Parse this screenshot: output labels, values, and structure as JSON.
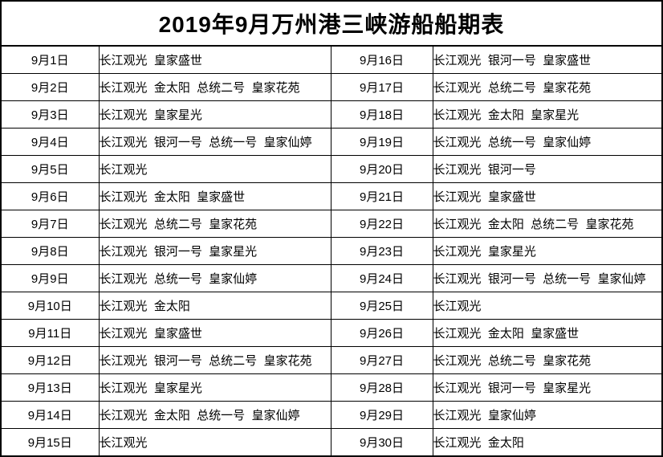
{
  "header": {
    "title": "2019年9月万州港三峡游船船期表"
  },
  "table": {
    "column_roles": [
      "date",
      "ships",
      "date",
      "ships"
    ],
    "rows": [
      {
        "left_date": "9月1日",
        "left_ships": "长江观光  皇家盛世",
        "right_date": "9月16日",
        "right_ships": "长江观光  银河一号  皇家盛世"
      },
      {
        "left_date": "9月2日",
        "left_ships": "长江观光  金太阳  总统二号  皇家花苑",
        "right_date": "9月17日",
        "right_ships": "长江观光  总统二号  皇家花苑"
      },
      {
        "left_date": "9月3日",
        "left_ships": "长江观光  皇家星光",
        "right_date": "9月18日",
        "right_ships": "长江观光  金太阳  皇家星光"
      },
      {
        "left_date": "9月4日",
        "left_ships": "长江观光  银河一号  总统一号  皇家仙婷",
        "right_date": "9月19日",
        "right_ships": "长江观光  总统一号  皇家仙婷"
      },
      {
        "left_date": "9月5日",
        "left_ships": "长江观光",
        "right_date": "9月20日",
        "right_ships": "长江观光  银河一号"
      },
      {
        "left_date": "9月6日",
        "left_ships": "长江观光  金太阳  皇家盛世",
        "right_date": "9月21日",
        "right_ships": "长江观光  皇家盛世"
      },
      {
        "left_date": "9月7日",
        "left_ships": "长江观光  总统二号  皇家花苑",
        "right_date": "9月22日",
        "right_ships": "长江观光  金太阳  总统二号  皇家花苑"
      },
      {
        "left_date": "9月8日",
        "left_ships": "长江观光  银河一号  皇家星光",
        "right_date": "9月23日",
        "right_ships": "长江观光  皇家星光"
      },
      {
        "left_date": "9月9日",
        "left_ships": "长江观光  总统一号  皇家仙婷",
        "right_date": "9月24日",
        "right_ships": "长江观光  银河一号  总统一号  皇家仙婷"
      },
      {
        "left_date": "9月10日",
        "left_ships": "长江观光  金太阳",
        "right_date": "9月25日",
        "right_ships": "长江观光"
      },
      {
        "left_date": "9月11日",
        "left_ships": "长江观光  皇家盛世",
        "right_date": "9月26日",
        "right_ships": "长江观光  金太阳  皇家盛世"
      },
      {
        "left_date": "9月12日",
        "left_ships": "长江观光  银河一号  总统二号  皇家花苑",
        "right_date": "9月27日",
        "right_ships": "长江观光  总统二号  皇家花苑"
      },
      {
        "left_date": "9月13日",
        "left_ships": "长江观光  皇家星光",
        "right_date": "9月28日",
        "right_ships": "长江观光  银河一号  皇家星光"
      },
      {
        "left_date": "9月14日",
        "left_ships": "长江观光  金太阳  总统一号  皇家仙婷",
        "right_date": "9月29日",
        "right_ships": "长江观光  皇家仙婷"
      },
      {
        "left_date": "9月15日",
        "left_ships": "长江观光",
        "right_date": "9月30日",
        "right_ships": "长江观光  金太阳"
      }
    ]
  },
  "colors": {
    "border": "#000000",
    "text": "#000000",
    "background": "#ffffff"
  }
}
